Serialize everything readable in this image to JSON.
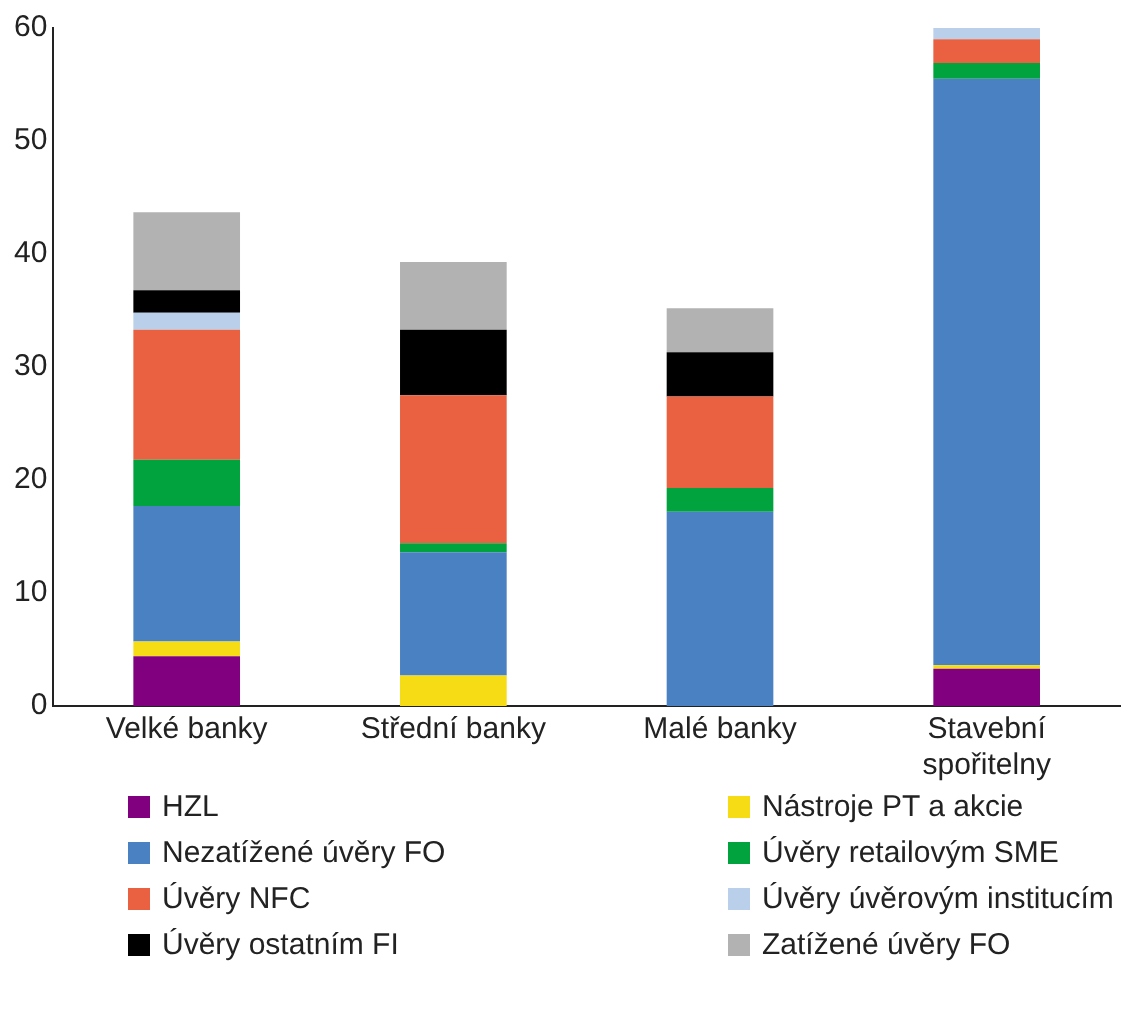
{
  "chart_data": {
    "type": "bar",
    "stacked": true,
    "categories": [
      "Velké banky",
      "Střední banky",
      "Malé banky",
      "Stavební spořitelny"
    ],
    "ylim": [
      0,
      60
    ],
    "yticks": [
      0,
      10,
      20,
      30,
      40,
      50,
      60
    ],
    "grid": false,
    "legend": "bottom",
    "series": [
      {
        "name": "HZL",
        "color": "#800080",
        "values": [
          4.4,
          0,
          0,
          3.3
        ]
      },
      {
        "name": "Nástroje PT a akcie",
        "color": "#f5dc14",
        "values": [
          1.3,
          2.7,
          0,
          0.3
        ]
      },
      {
        "name": "Nezatížené úvěry FO",
        "color": "#4a81c3",
        "values": [
          12.0,
          10.9,
          17.2,
          51.9
        ]
      },
      {
        "name": "Úvěry retailovým SME",
        "color": "#00a33d",
        "values": [
          4.1,
          0.8,
          2.1,
          1.4
        ]
      },
      {
        "name": "Úvěry NFC",
        "color": "#e96140",
        "values": [
          11.5,
          13.1,
          8.1,
          2.1
        ]
      },
      {
        "name": "Úvěry úvěrovým institucím",
        "color": "#b9cfea",
        "values": [
          1.5,
          0,
          0,
          1.0
        ]
      },
      {
        "name": "Úvěry ostatním FI",
        "color": "#000000",
        "values": [
          2.0,
          5.8,
          3.9,
          0
        ]
      },
      {
        "name": "Zatížené úvěry FO",
        "color": "#b2b2b2",
        "values": [
          6.9,
          6.0,
          3.9,
          0
        ]
      }
    ]
  }
}
